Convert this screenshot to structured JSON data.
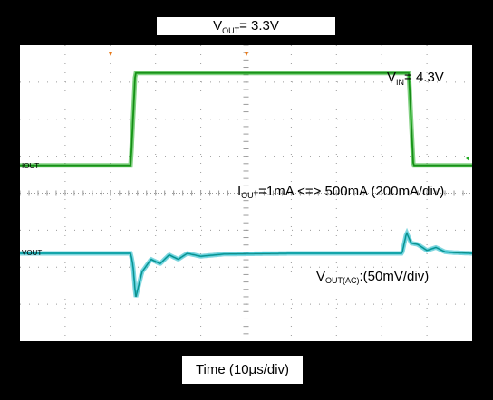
{
  "title": {
    "main": "V",
    "sub": "OUT",
    "rest": "= 3.3V"
  },
  "xlabel": "Time (10μs/div)",
  "annotations": {
    "vin": {
      "main": "V",
      "sub": "IN",
      "rest": "= 4.3V"
    },
    "iout": {
      "main": "I",
      "sub": "OUT",
      "rest": "=1mA <=> 500mA (200mA/div)"
    },
    "vout": {
      "main": "V",
      "sub": "OUT(AC)",
      "rest": ":(50mV/div)"
    }
  },
  "channel_markers": {
    "ch1": "IOUT",
    "ch2": "VOUT"
  },
  "colors": {
    "iout_trace": "#1faa1f",
    "vout_trace": "#17b5c2",
    "grid": "#9a9a9a",
    "trigger": "#e87a1a"
  },
  "chart_data": {
    "type": "line",
    "grid": true,
    "divisions": {
      "x": 10,
      "y": 8
    },
    "x_unit": "μs",
    "series": [
      {
        "name": "IOUT",
        "unit": "mA",
        "x": [
          0,
          24.5,
          25.5,
          50,
          86,
          87,
          100
        ],
        "y": [
          1,
          1,
          500,
          500,
          500,
          1,
          1
        ]
      },
      {
        "name": "VOUT(AC)",
        "unit": "mV",
        "x": [
          0,
          24.5,
          25.0,
          25.6,
          27,
          29,
          31,
          33,
          35,
          37,
          40,
          45,
          60,
          84.5,
          85.5,
          86.5,
          88,
          90,
          92,
          94,
          96,
          100
        ],
        "y": [
          0,
          0,
          -16,
          -60,
          -25,
          -8,
          -14,
          -2,
          -8,
          0,
          -4,
          -1,
          0,
          0,
          28,
          14,
          12,
          4,
          8,
          2,
          1,
          0
        ]
      }
    ]
  }
}
